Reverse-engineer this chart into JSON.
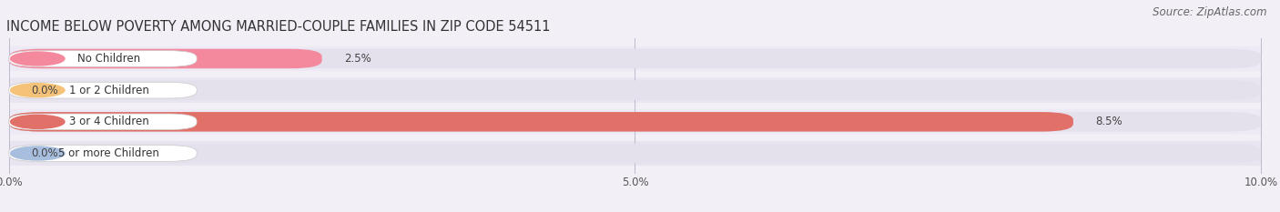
{
  "title": "INCOME BELOW POVERTY AMONG MARRIED-COUPLE FAMILIES IN ZIP CODE 54511",
  "source": "Source: ZipAtlas.com",
  "categories": [
    "No Children",
    "1 or 2 Children",
    "3 or 4 Children",
    "5 or more Children"
  ],
  "values": [
    2.5,
    0.0,
    8.5,
    0.0
  ],
  "bar_colors": [
    "#f4899e",
    "#f5c27a",
    "#e07068",
    "#a8bede"
  ],
  "row_colors": [
    "#f5f0f5",
    "#f0edf5",
    "#f5f0f5",
    "#f0edf5"
  ],
  "xlim": [
    0,
    10.0
  ],
  "xticks": [
    0.0,
    5.0,
    10.0
  ],
  "xtick_labels": [
    "0.0%",
    "5.0%",
    "10.0%"
  ],
  "background_color": "#f2eff7",
  "bar_background_color": "#e4e0ec",
  "title_fontsize": 10.5,
  "source_fontsize": 8.5,
  "tick_fontsize": 8.5,
  "label_fontsize": 8.5,
  "value_fontsize": 8.5
}
